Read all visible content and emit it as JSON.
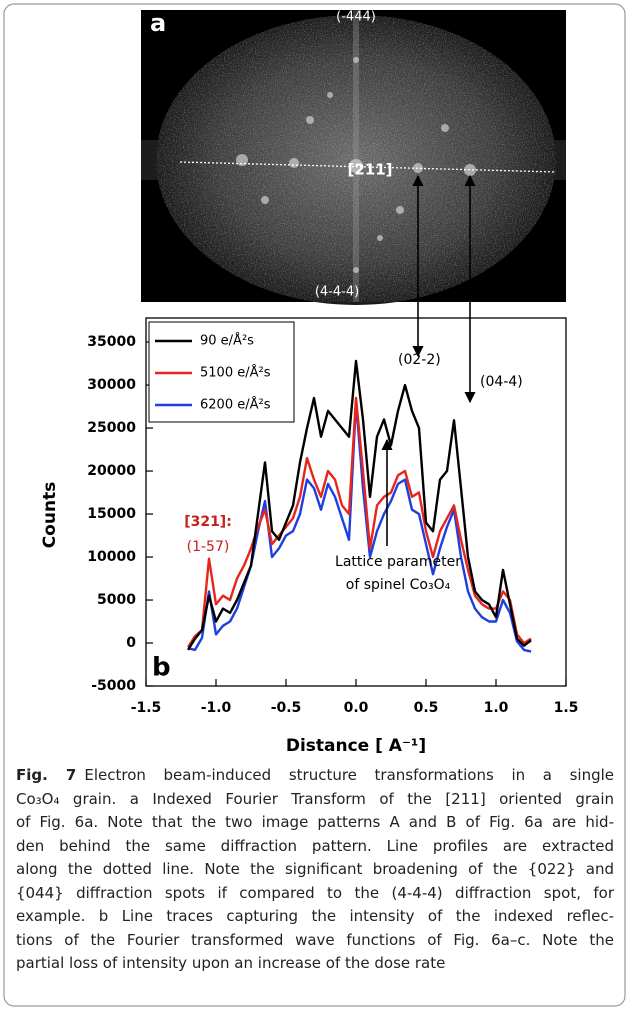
{
  "panel_a": {
    "label": "a",
    "spot_top": "(-444)",
    "zone_axis": "[211]",
    "spot_bottom": "(4-4-4)"
  },
  "chart_data": {
    "type": "line",
    "panel_label": "b",
    "x_label": "Distance [ A⁻¹]",
    "y_label": "Counts",
    "xlim": [
      -1.5,
      1.5
    ],
    "ylim": [
      -5000,
      37800
    ],
    "xticks": [
      -1.5,
      {
        "value": -1.0,
        "label": "-1.0"
      },
      -0.5,
      {
        "value": 0.0,
        "label": "0.0"
      },
      0.5,
      {
        "value": 1.0,
        "label": "1.0"
      },
      1.5
    ],
    "yticks": [
      -5000,
      0,
      5000,
      10000,
      15000,
      20000,
      25000,
      30000,
      35000
    ],
    "legend": "top-left",
    "x": [
      -1.2,
      -1.15,
      -1.1,
      -1.05,
      -1.0,
      -0.95,
      -0.9,
      -0.85,
      -0.8,
      -0.75,
      -0.7,
      -0.65,
      -0.6,
      -0.55,
      -0.5,
      -0.45,
      -0.4,
      -0.35,
      -0.3,
      -0.25,
      -0.2,
      -0.15,
      -0.1,
      -0.05,
      0.0,
      0.05,
      0.1,
      0.15,
      0.2,
      0.25,
      0.3,
      0.35,
      0.4,
      0.45,
      0.5,
      0.55,
      0.6,
      0.65,
      0.7,
      0.75,
      0.8,
      0.85,
      0.9,
      0.95,
      1.0,
      1.05,
      1.1,
      1.15,
      1.2,
      1.25
    ],
    "series": [
      {
        "name": "90 e/Å²s",
        "color": "#000000",
        "values": [
          -800,
          500,
          1500,
          5500,
          2500,
          4000,
          3500,
          5000,
          7000,
          9000,
          15000,
          21000,
          13000,
          12000,
          14000,
          16000,
          21000,
          25000,
          28500,
          24000,
          27000,
          26000,
          25000,
          24000,
          32800,
          26000,
          17000,
          24000,
          26000,
          23000,
          27000,
          30000,
          27000,
          25000,
          14000,
          13000,
          19000,
          20000,
          25900,
          18000,
          10000,
          6000,
          5000,
          4500,
          3000,
          8500,
          4500,
          500,
          -300,
          300
        ]
      },
      {
        "name": "5100 e/Å²s",
        "color": "#e8251c",
        "values": [
          -500,
          800,
          1500,
          9800,
          4500,
          5500,
          5000,
          7500,
          9000,
          11000,
          13500,
          15500,
          11500,
          12500,
          13500,
          14500,
          17000,
          21500,
          19000,
          17000,
          20000,
          19000,
          16000,
          15000,
          28500,
          20000,
          11000,
          16000,
          17000,
          17500,
          19500,
          20000,
          17000,
          17500,
          13000,
          10000,
          13000,
          14500,
          16000,
          12000,
          8500,
          5500,
          4500,
          4000,
          4000,
          6000,
          5000,
          1000,
          0,
          500
        ]
      },
      {
        "name": "6200 e/Å²s",
        "color": "#1d3fe0",
        "values": [
          -600,
          -800,
          600,
          6000,
          1000,
          2000,
          2500,
          4000,
          6500,
          9000,
          13000,
          16500,
          10000,
          11000,
          12500,
          13000,
          15000,
          19000,
          18000,
          15500,
          18500,
          17000,
          14500,
          12000,
          28000,
          18000,
          10000,
          13000,
          15000,
          16500,
          18500,
          19000,
          15500,
          15000,
          11500,
          8000,
          11000,
          13500,
          15500,
          10000,
          6000,
          4000,
          3000,
          2500,
          2500,
          5000,
          3500,
          200,
          -800,
          -1000
        ]
      }
    ],
    "annotations": {
      "peak_022": "(02-2)",
      "peak_044": "(04-4)",
      "red_index": "[321]:",
      "red_spot": "(1-57)",
      "lattice_1": "Lattice parameter",
      "lattice_2": "of spinel Co₃O₄"
    }
  },
  "caption": {
    "label": "Fig. 7",
    "lines": [
      "Electron beam-induced structure transformations in a single",
      "Co₃O₄ grain. a Indexed Fourier Transform of the [211] oriented grain",
      "of Fig. 6a. Note that the two image patterns A and B of Fig. 6a are hid-",
      "den behind the same diffraction pattern. Line profiles are extracted",
      "along the dotted line. Note the significant broadening of the {022} and",
      "{044} diffraction spots if compared to the (4-4-4) diffraction spot, for",
      "example. b Line traces capturing the intensity of the indexed reflec-",
      "tions of the Fourier transformed wave functions of Fig. 6a–c. Note the",
      "partial loss of intensity upon an increase of the dose rate"
    ]
  }
}
